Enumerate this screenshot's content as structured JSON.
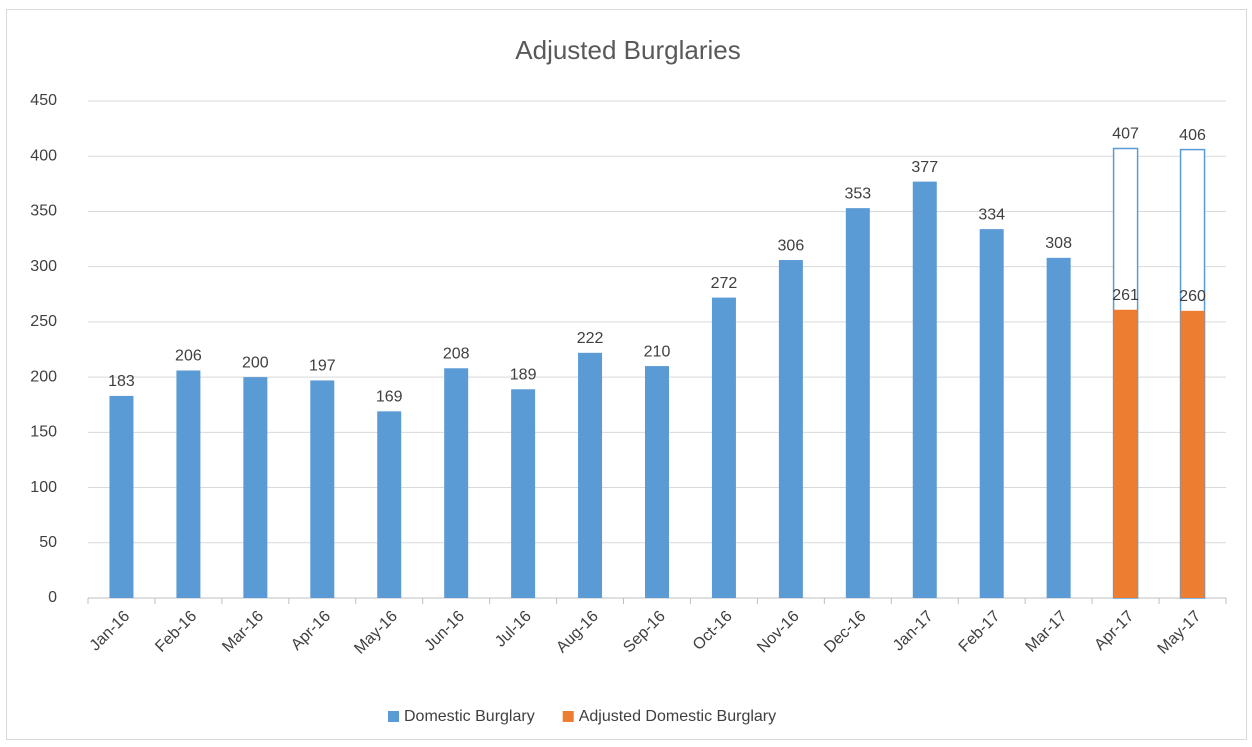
{
  "chart_data": {
    "type": "bar",
    "title": "Adjusted Burglaries",
    "categories": [
      "Jan-16",
      "Feb-16",
      "Mar-16",
      "Apr-16",
      "May-16",
      "Jun-16",
      "Jul-16",
      "Aug-16",
      "Sep-16",
      "Oct-16",
      "Nov-16",
      "Dec-16",
      "Jan-17",
      "Feb-17",
      "Mar-17",
      "Apr-17",
      "May-17"
    ],
    "series": [
      {
        "name": "Domestic Burglary",
        "color": "#5b9bd5",
        "values": [
          183,
          206,
          200,
          197,
          169,
          208,
          189,
          222,
          210,
          272,
          306,
          353,
          377,
          334,
          308,
          407,
          406
        ]
      },
      {
        "name": "Adjusted Domestic Burglary",
        "color": "#ed7d31",
        "values": [
          null,
          null,
          null,
          null,
          null,
          null,
          null,
          null,
          null,
          null,
          null,
          null,
          null,
          null,
          null,
          261,
          260
        ]
      }
    ],
    "ylim": [
      0,
      450
    ],
    "yticks": [
      0,
      50,
      100,
      150,
      200,
      250,
      300,
      350,
      400,
      450
    ],
    "grid": true,
    "legend": "bottom"
  }
}
